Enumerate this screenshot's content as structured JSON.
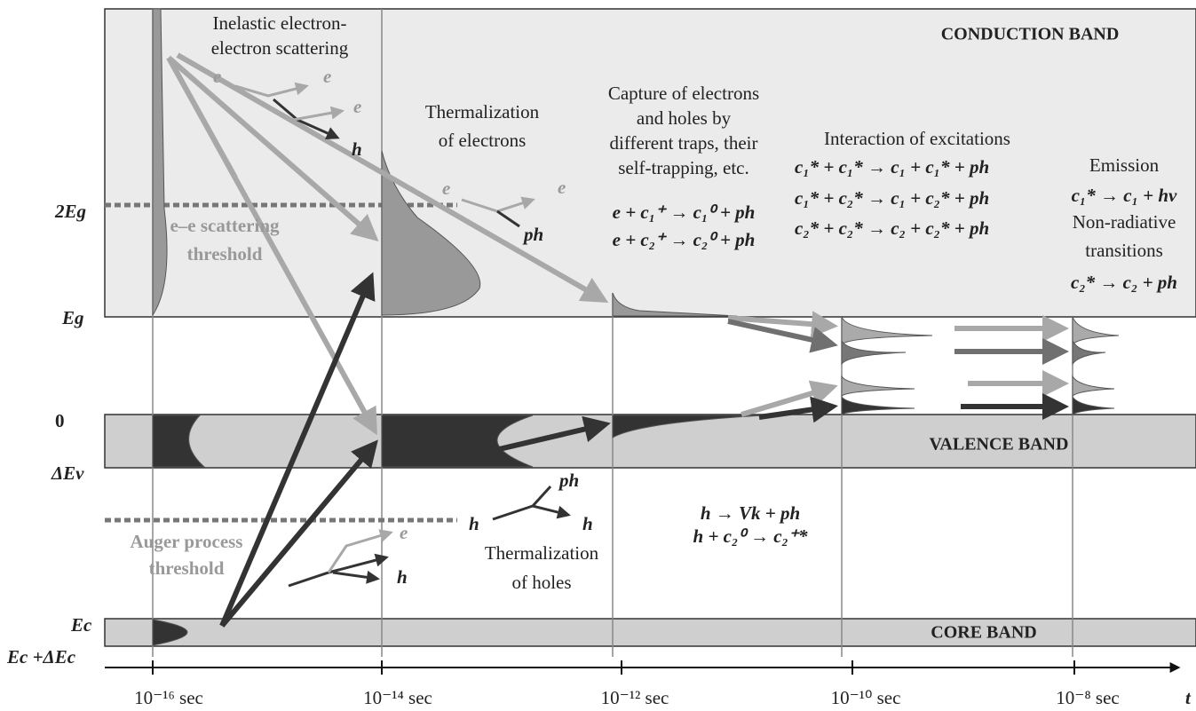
{
  "bands": {
    "conduction": "CONDUCTION BAND",
    "valence": "VALENCE BAND",
    "core": "CORE BAND"
  },
  "energy_levels": [
    "2Eg",
    "Eg",
    "0",
    "ΔEv",
    "Ec",
    "Ec +ΔEc"
  ],
  "times": [
    "10⁻¹⁶ sec",
    "10⁻¹⁴ sec",
    "10⁻¹² sec",
    "10⁻¹⁰ sec",
    "10⁻⁸ sec"
  ],
  "time_axis_label": "t",
  "processes": {
    "inelastic": [
      "Inelastic electron-",
      "electron scattering"
    ],
    "thermalization_electrons": [
      "Thermalization",
      "of electrons"
    ],
    "capture": [
      "Capture of electrons",
      "and holes by",
      "different traps, their",
      "self-trapping, etc.",
      "e + c₁⁺ → c₁⁰ + ph",
      "e + c₂⁺ → c₂⁰ + ph"
    ],
    "interaction": [
      "Interaction of excitations",
      "c₁* + c₁* → c₁ + c₁* + ph",
      "c₁* + c₂* → c₁ + c₂* + ph",
      "c₂* + c₂* → c₂ + c₂* + ph"
    ],
    "emission": [
      "Emission",
      "c₁* → c₁ + hν",
      "Non-radiative",
      "transitions",
      "c₂* → c₂ + ph"
    ],
    "ee_threshold": [
      "e–e scattering",
      "threshold"
    ],
    "auger_threshold": [
      "Auger process",
      "threshold"
    ],
    "thermalization_holes": [
      "Thermalization",
      "of holes"
    ],
    "hole_processes": [
      "h → Vk + ph",
      "h + c₂⁰ → c₂⁺*"
    ]
  },
  "particle_labels": [
    "e",
    "e",
    "e",
    "h",
    "e",
    "e",
    "ph",
    "ph",
    "h",
    "h",
    "e",
    "h"
  ]
}
